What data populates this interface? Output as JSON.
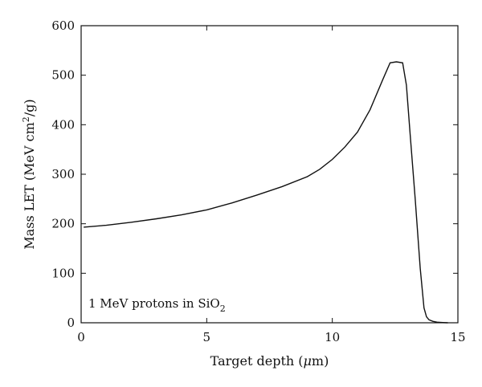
{
  "chart_data": {
    "type": "line",
    "title": "",
    "xlabel": "Target depth (",
    "xlabel_unit": "μ",
    "xlabel_suffix": "m)",
    "ylabel": "Mass LET (MeV cm",
    "ylabel_sup": "2",
    "ylabel_suffix": "/g)",
    "xlim": [
      0,
      15
    ],
    "ylim": [
      0,
      600
    ],
    "xticks": [
      0,
      5,
      10,
      15
    ],
    "yticks": [
      0,
      100,
      200,
      300,
      400,
      500,
      600
    ],
    "grid": false,
    "annotation": {
      "prefix": "1 MeV protons in SiO",
      "subscript": "2",
      "placement": "bottom-left"
    },
    "series": [
      {
        "x": [
          0.1,
          1,
          2,
          3,
          4,
          5,
          6,
          7,
          8,
          9,
          9.5,
          10,
          10.5,
          11,
          11.5,
          12,
          12.3,
          12.55,
          12.8,
          12.95,
          13.1,
          13.3,
          13.5,
          13.65,
          13.75,
          13.85,
          14.0,
          14.2,
          14.4,
          14.6
        ],
        "y": [
          193,
          197,
          203,
          210,
          218,
          228,
          242,
          258,
          275,
          295,
          310,
          330,
          355,
          385,
          430,
          490,
          525,
          527,
          525,
          480,
          380,
          250,
          110,
          30,
          12,
          6,
          3,
          1,
          0.4,
          0
        ]
      }
    ]
  }
}
